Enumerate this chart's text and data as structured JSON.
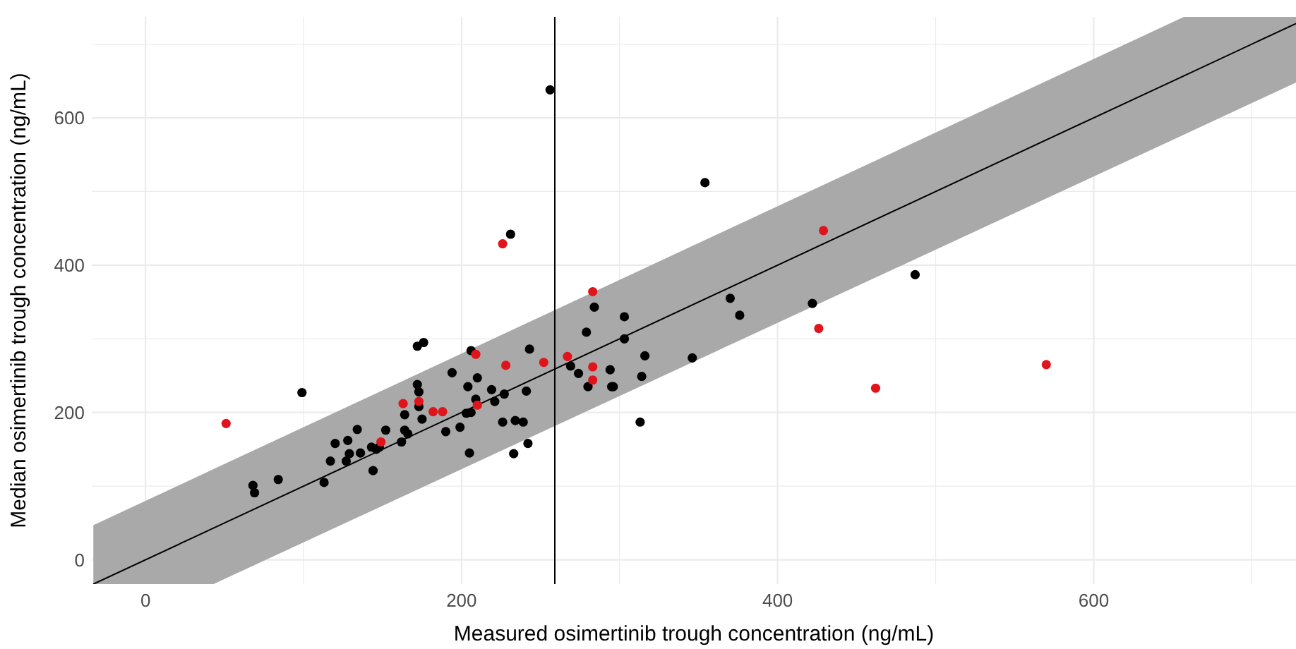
{
  "chart_data": {
    "type": "scatter",
    "xlabel": "Measured osimertinib trough concentration (ng/mL)",
    "ylabel": "Median osimertinib trough concentration (ng/mL)",
    "xlim": [
      -34,
      728
    ],
    "ylim": [
      -33,
      737
    ],
    "xticks": [
      0,
      {
        "value": 100,
        "label": null
      },
      200,
      {
        "value": 300,
        "label": null
      },
      400,
      {
        "value": 500,
        "label": null
      },
      600,
      {
        "value": 700,
        "label": null
      }
    ],
    "yticks": [
      0,
      {
        "value": 100,
        "label": null
      },
      200,
      {
        "value": 300,
        "label": null
      },
      400,
      {
        "value": 500,
        "label": null
      },
      600,
      {
        "value": 700,
        "label": null
      }
    ],
    "grid": true,
    "marker": "circle",
    "ref_lines": [
      {
        "axis": "x",
        "value": 259,
        "color": "#000000"
      }
    ],
    "series": [
      {
        "type": "line",
        "marker": "none",
        "color": "#000000",
        "x": [
          -33,
          43,
          657,
          728
        ],
        "values": [
          -33,
          43,
          657,
          728
        ],
        "lower": [
          -33,
          -33,
          577,
          648
        ],
        "upper": [
          47,
          123,
          737,
          737
        ]
      },
      {
        "color": "#000000",
        "x": [
          99,
          68,
          69,
          84,
          113,
          117,
          120,
          127,
          128,
          129,
          134,
          136,
          143,
          144,
          146,
          148,
          152,
          162,
          164,
          164,
          166,
          172,
          176,
          172,
          173,
          173,
          175,
          190,
          194,
          199,
          204,
          205,
          203,
          206,
          206,
          209,
          210,
          256,
          354,
          231,
          284,
          279,
          303,
          303,
          316,
          314,
          313,
          296,
          294,
          280,
          274,
          269,
          346,
          370,
          376,
          422,
          243,
          241,
          242,
          233,
          234,
          239,
          226,
          227,
          221,
          219,
          487,
          295
        ],
        "values": [
          227,
          101,
          91,
          109,
          105,
          134,
          158,
          134,
          162,
          144,
          177,
          145,
          153,
          121,
          150,
          153,
          176,
          160,
          197,
          176,
          171,
          290,
          295,
          238,
          228,
          208,
          191,
          174,
          254,
          180,
          235,
          145,
          199,
          200,
          284,
          218,
          247,
          638,
          512,
          442,
          343,
          309,
          330,
          300,
          277,
          249,
          187,
          235,
          258,
          235,
          253,
          263,
          274,
          355,
          332,
          348,
          286,
          229,
          158,
          144,
          189,
          187,
          187,
          225,
          215,
          231,
          387,
          235
        ]
      },
      {
        "color": "#e0141b",
        "x": [
          51,
          149,
          163,
          173,
          182,
          188,
          209,
          210,
          226,
          283,
          283,
          283,
          267,
          252,
          228,
          429,
          426,
          462,
          570
        ],
        "values": [
          185,
          160,
          212,
          215,
          201,
          201,
          279,
          210,
          429,
          364,
          262,
          244,
          276,
          268,
          264,
          447,
          314,
          233,
          265
        ]
      }
    ]
  }
}
